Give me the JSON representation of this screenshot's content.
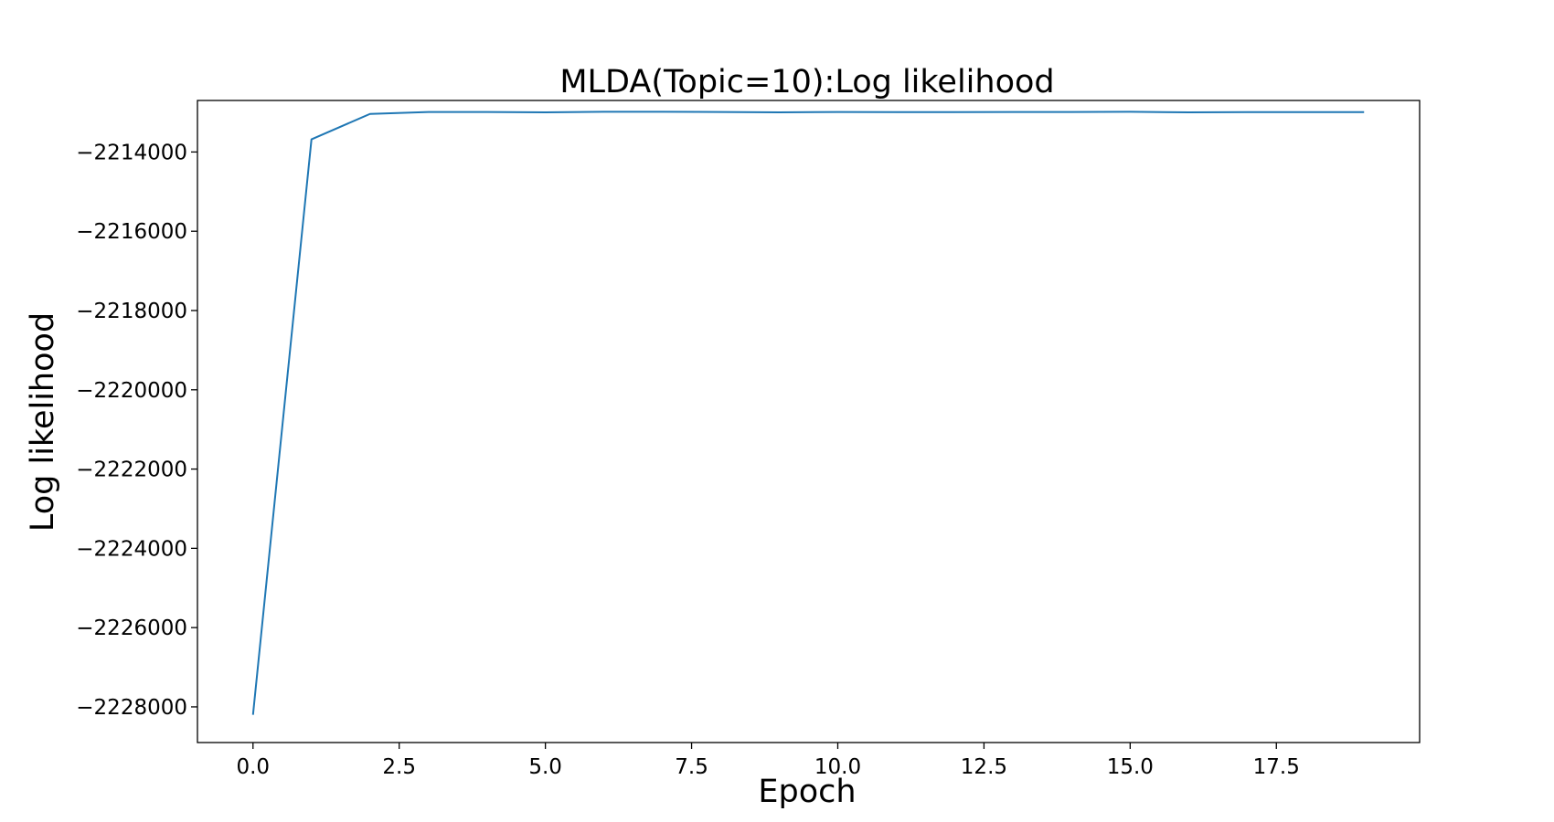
{
  "chart_data": {
    "type": "line",
    "title": "MLDA(Topic=10):Log likelihood",
    "xlabel": "Epoch",
    "ylabel": "Log likelihood",
    "xlim": [
      -0.95,
      19.95
    ],
    "ylim": [
      -2228900,
      -2212700
    ],
    "x_ticks": [
      0.0,
      2.5,
      5.0,
      7.5,
      10.0,
      12.5,
      15.0,
      17.5
    ],
    "x_tick_labels": [
      "0.0",
      "2.5",
      "5.0",
      "7.5",
      "10.0",
      "12.5",
      "15.0",
      "17.5"
    ],
    "y_ticks": [
      -2214000,
      -2216000,
      -2218000,
      -2220000,
      -2222000,
      -2224000,
      -2226000,
      -2228000
    ],
    "y_tick_labels": [
      "−2214000",
      "−2216000",
      "−2218000",
      "−2220000",
      "−2222000",
      "−2224000",
      "−2226000",
      "−2228000"
    ],
    "grid": false,
    "legend": "none",
    "series": [
      {
        "color": "#1f77b4",
        "x": [
          0,
          1,
          2,
          3,
          4,
          5,
          6,
          7,
          8,
          9,
          10,
          11,
          12,
          13,
          14,
          15,
          16,
          17,
          18,
          19
        ],
        "values": [
          -2228200,
          -2213680,
          -2213040,
          -2212990,
          -2212990,
          -2213000,
          -2212985,
          -2212985,
          -2212990,
          -2213000,
          -2212990,
          -2212995,
          -2212995,
          -2212990,
          -2212990,
          -2212985,
          -2213000,
          -2212995,
          -2212995,
          -2212995
        ]
      }
    ]
  }
}
